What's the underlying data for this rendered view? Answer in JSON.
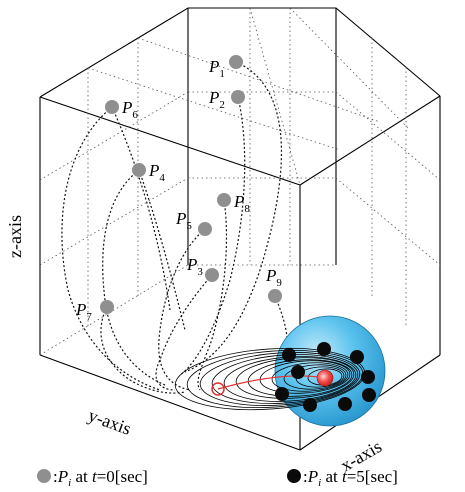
{
  "axes": {
    "x_label": "x-axis",
    "y_label": "y-axis",
    "z_label": "z-axis"
  },
  "initial_points": [
    {
      "sym": "P",
      "sub": "1"
    },
    {
      "sym": "P",
      "sub": "2"
    },
    {
      "sym": "P",
      "sub": "3"
    },
    {
      "sym": "P",
      "sub": "4"
    },
    {
      "sym": "P",
      "sub": "5"
    },
    {
      "sym": "P",
      "sub": "6"
    },
    {
      "sym": "P",
      "sub": "7"
    },
    {
      "sym": "P",
      "sub": "8"
    },
    {
      "sym": "P",
      "sub": "9"
    }
  ],
  "legend": [
    {
      "marker": "gray",
      "sym": "P",
      "sub": "i",
      "text": " at ",
      "t": "t",
      "value": "=0[sec]"
    },
    {
      "marker": "black",
      "sym": "P",
      "sub": "i",
      "text": " at ",
      "t": "t",
      "value": "=5[sec]"
    }
  ],
  "colors": {
    "initial_marker": "#8f8f8f",
    "final_marker": "#0a0a0a",
    "sphere": "#3fb3e6",
    "target": "#e83030",
    "trajectory": "#111111"
  }
}
